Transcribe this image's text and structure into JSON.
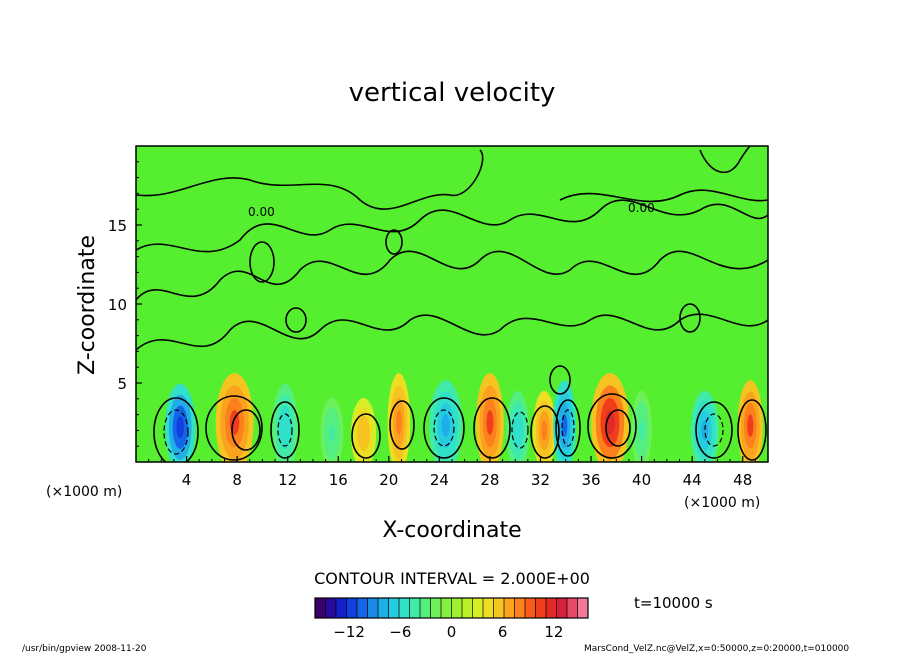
{
  "chart_data": {
    "type": "heatmap",
    "title": "vertical velocity",
    "xlabel": "X-coordinate",
    "ylabel": "Z-coordinate",
    "x_unit_left": "(×1000 m)",
    "x_unit_right": "(×1000 m)",
    "xlim": [
      0,
      50
    ],
    "ylim": [
      0,
      20
    ],
    "x_ticks": [
      4,
      8,
      12,
      16,
      20,
      24,
      28,
      32,
      36,
      40,
      44,
      48
    ],
    "y_ticks": [
      5,
      10,
      15
    ],
    "contour_interval_label": "CONTOUR INTERVAL = 2.000E+00",
    "contour_label": "0.00",
    "time_label": "t=10000 s",
    "colorbar": {
      "min": -16,
      "max": 16,
      "ticks": [
        -12,
        -6,
        0,
        6,
        12
      ],
      "colors": [
        "#3a006e",
        "#2a0a9e",
        "#1520c8",
        "#1040e0",
        "#1565e8",
        "#1a8ae8",
        "#20aee8",
        "#25cce0",
        "#30e0c8",
        "#40eaa8",
        "#55ef80",
        "#6ef05a",
        "#86f040",
        "#a0f030",
        "#bcf028",
        "#d6ee25",
        "#ecde22",
        "#f6c420",
        "#fba21e",
        "#fc801c",
        "#f85c1a",
        "#f03e1c",
        "#e02a28",
        "#d81f3c",
        "#e84a6a",
        "#f07a95"
      ]
    },
    "cells": [
      {
        "x": 3.5,
        "z": 2.2,
        "w": 2.4,
        "v": -12
      },
      {
        "x": 7.8,
        "z": 2.5,
        "w": 3.0,
        "v": 10
      },
      {
        "x": 11.8,
        "z": 2.2,
        "w": 2.0,
        "v": -6
      },
      {
        "x": 15.5,
        "z": 1.8,
        "w": 1.8,
        "v": -4
      },
      {
        "x": 18.0,
        "z": 1.8,
        "w": 2.0,
        "v": 6
      },
      {
        "x": 20.8,
        "z": 2.5,
        "w": 1.8,
        "v": 8
      },
      {
        "x": 24.5,
        "z": 2.3,
        "w": 2.6,
        "v": -8
      },
      {
        "x": 28.0,
        "z": 2.5,
        "w": 2.2,
        "v": 10
      },
      {
        "x": 30.2,
        "z": 2.0,
        "w": 1.8,
        "v": -6
      },
      {
        "x": 32.3,
        "z": 2.0,
        "w": 1.8,
        "v": 8
      },
      {
        "x": 33.9,
        "z": 2.3,
        "w": 1.8,
        "v": -10
      },
      {
        "x": 37.5,
        "z": 2.5,
        "w": 3.0,
        "v": 12
      },
      {
        "x": 40.0,
        "z": 2.0,
        "w": 1.6,
        "v": -4
      },
      {
        "x": 45.0,
        "z": 2.0,
        "w": 2.2,
        "v": -8
      },
      {
        "x": 48.6,
        "z": 2.3,
        "w": 2.0,
        "v": 10
      }
    ]
  },
  "footer": {
    "left": "/usr/bin/gpview   2008-11-20",
    "right": "MarsCond_VelZ.nc@VelZ,x=0:50000,z=0:20000,t=010000"
  }
}
